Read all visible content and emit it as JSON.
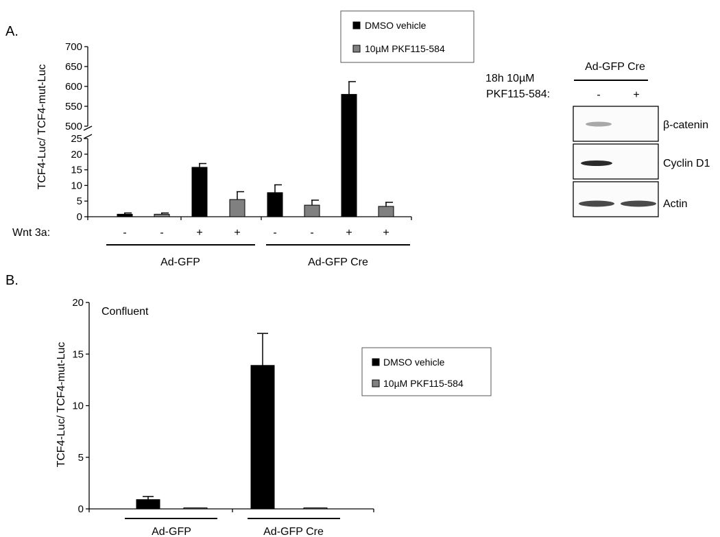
{
  "panelA": {
    "label": "A.",
    "ylabel": "TCF4-Luc/ TCF4-mut-Luc",
    "treatment_label": "Wnt 3a:",
    "group_labels": [
      "Ad-GFP",
      "Ad-GFP Cre"
    ],
    "legend": [
      "DMSO vehicle",
      "10µM PKF115-584"
    ]
  },
  "panelB": {
    "label": "B.",
    "ylabel": "TCF4-Luc/ TCF4-mut-Luc",
    "annotation": "Confluent",
    "legend": [
      "DMSO vehicle",
      "10µM PKF115-584"
    ]
  },
  "blot": {
    "treatment_line1": "18h 10µM",
    "treatment_line2": "PKF115-584:",
    "group_label": "Ad-GFP Cre",
    "lane_signs": [
      "-",
      "+"
    ],
    "bands": [
      "β-catenin",
      "Cyclin D1",
      "Actin"
    ]
  },
  "colors": {
    "dmso": "#000000",
    "pkf": "#808080"
  },
  "chart_data": [
    {
      "type": "bar",
      "panel": "A",
      "ylabel": "TCF4-Luc/ TCF4-mut-Luc",
      "axis_break": true,
      "ylim_lower": [
        0,
        25
      ],
      "ylim_upper": [
        500,
        700
      ],
      "yticks": [
        0,
        5,
        10,
        15,
        20,
        25,
        500,
        550,
        600,
        650,
        700
      ],
      "groups": [
        "Ad-GFP",
        "Ad-GFP Cre"
      ],
      "wnt3a": [
        "-",
        "-",
        "+",
        "+",
        "-",
        "-",
        "+",
        "+"
      ],
      "values": [
        0.8,
        0.8,
        15.8,
        5.5,
        7.7,
        3.7,
        580,
        3.3
      ],
      "errors": [
        0.4,
        0.4,
        1.2,
        2.5,
        2.5,
        1.6,
        32,
        1.3
      ],
      "series": [
        {
          "name": "DMSO vehicle",
          "bar_indices": [
            0,
            2,
            4,
            6
          ]
        },
        {
          "name": "10µM PKF115-584",
          "bar_indices": [
            1,
            3,
            5,
            7
          ]
        }
      ]
    },
    {
      "type": "bar",
      "panel": "B",
      "annotation": "Confluent",
      "ylabel": "TCF4-Luc/ TCF4-mut-Luc",
      "ylim": [
        0,
        20
      ],
      "yticks": [
        0,
        5,
        10,
        15,
        20
      ],
      "categories": [
        "Ad-GFP",
        "Ad-GFP Cre"
      ],
      "series": [
        {
          "name": "DMSO vehicle",
          "values": [
            0.9,
            13.9
          ],
          "errors": [
            0.3,
            3.1
          ]
        },
        {
          "name": "10µM PKF115-584",
          "values": [
            0.0,
            0.1
          ],
          "errors": [
            0,
            0
          ]
        }
      ]
    }
  ]
}
